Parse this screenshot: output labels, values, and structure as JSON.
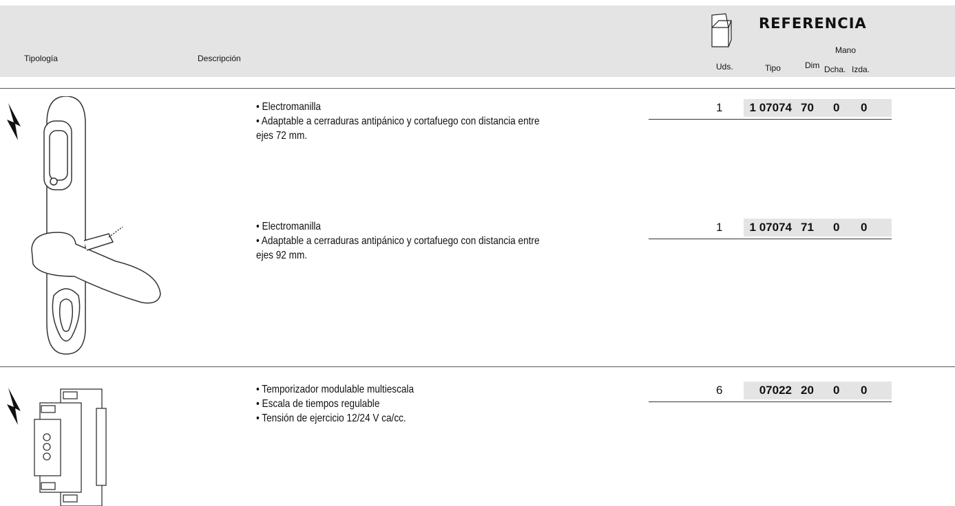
{
  "header": {
    "tipologia": "Tipología",
    "descripcion": "Descripción",
    "uds": "Uds.",
    "referencia": "REFERENCIA",
    "mano": "Mano",
    "tipo": "Tipo",
    "dim": "Dim",
    "dcha": "Dcha.",
    "izda": "Izda."
  },
  "products": [
    {
      "bullets": [
        "• Electromanilla",
        "• Adaptable a cerraduras antipánico y cortafuego con distancia entre",
        "ejes 72 mm."
      ],
      "uds": "1",
      "tipo": "1 07074",
      "dim": "70",
      "dcha": "0",
      "izda": "0"
    },
    {
      "bullets": [
        "• Electromanilla",
        "• Adaptable a cerraduras antipánico y cortafuego con distancia entre",
        "ejes 92 mm."
      ],
      "uds": "1",
      "tipo": "1 07074",
      "dim": "71",
      "dcha": "0",
      "izda": "0"
    },
    {
      "bullets": [
        "• Temporizador modulable multiescala",
        "• Escala de tiempos regulable",
        "• Tensión de ejercicio 12/24 V ca/cc."
      ],
      "uds": "6",
      "tipo": "07022",
      "dim": "20",
      "dcha": "0",
      "izda": "0"
    }
  ]
}
